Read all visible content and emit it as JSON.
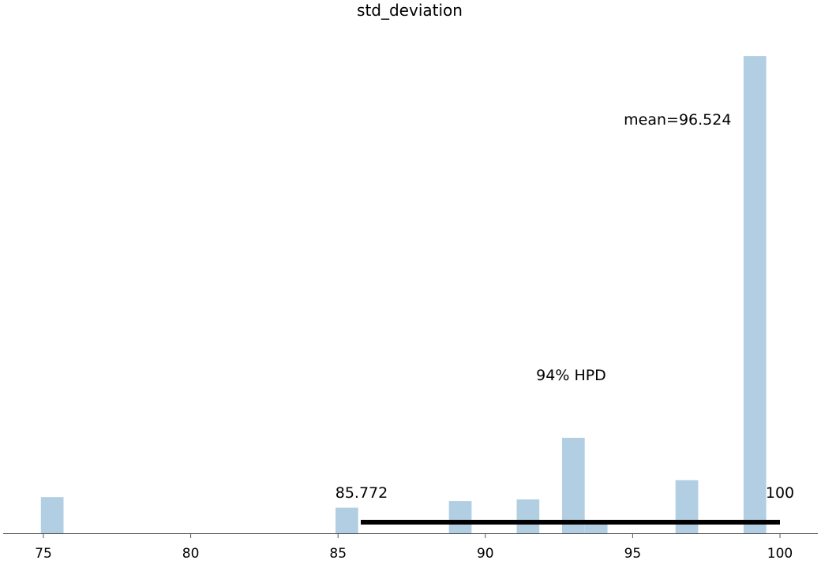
{
  "chart_data": {
    "type": "bar",
    "title": "std_deviation",
    "xlabel": "",
    "ylabel": "",
    "xlim": [
      73.6,
      101.3
    ],
    "ylim": [
      0,
      1
    ],
    "x_ticks": [
      75,
      80,
      85,
      90,
      95,
      100
    ],
    "bar_color": "#b1cee3",
    "bar_width": 0.77,
    "bars": [
      {
        "x": 75.3,
        "value": 0.075
      },
      {
        "x": 85.3,
        "value": 0.053
      },
      {
        "x": 89.15,
        "value": 0.067
      },
      {
        "x": 91.45,
        "value": 0.07
      },
      {
        "x": 92.99,
        "value": 0.198
      },
      {
        "x": 93.76,
        "value": 0.02
      },
      {
        "x": 96.84,
        "value": 0.11
      },
      {
        "x": 99.15,
        "value": 0.99
      }
    ],
    "mean": {
      "value": 96.524,
      "label": "mean=96.524"
    },
    "hpd": {
      "label": "94% HPD",
      "low": 85.772,
      "high": 100,
      "low_label": "85.772",
      "high_label": "100",
      "color": "#000000"
    },
    "grid": false,
    "legend": "none"
  }
}
